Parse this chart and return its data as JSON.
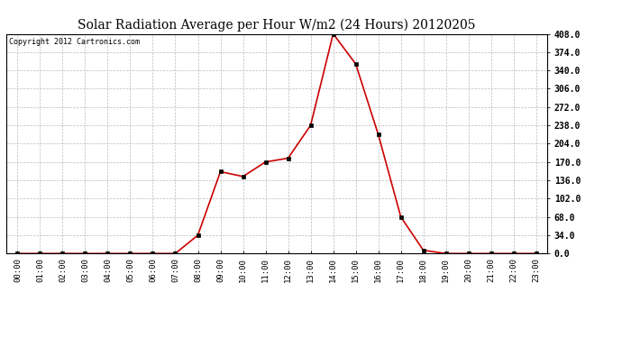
{
  "title": "Solar Radiation Average per Hour W/m2 (24 Hours) 20120205",
  "copyright_text": "Copyright 2012 Cartronics.com",
  "hours": [
    "00:00",
    "01:00",
    "02:00",
    "03:00",
    "04:00",
    "05:00",
    "06:00",
    "07:00",
    "08:00",
    "09:00",
    "10:00",
    "11:00",
    "12:00",
    "13:00",
    "14:00",
    "15:00",
    "16:00",
    "17:00",
    "18:00",
    "19:00",
    "20:00",
    "21:00",
    "22:00",
    "23:00"
  ],
  "values": [
    0,
    0,
    0,
    0,
    0,
    0,
    0,
    0,
    34,
    152,
    143,
    170,
    177,
    238,
    408,
    352,
    221,
    68,
    6,
    0,
    0,
    0,
    0,
    0
  ],
  "line_color": "#cc0000",
  "marker_color": "#000000",
  "bg_color": "#ffffff",
  "grid_color": "#bbbbbb",
  "y_ticks": [
    0.0,
    34.0,
    68.0,
    102.0,
    136.0,
    170.0,
    204.0,
    238.0,
    272.0,
    306.0,
    340.0,
    374.0,
    408.0
  ],
  "ylim": [
    0,
    408
  ],
  "title_fontsize": 10,
  "copyright_fontsize": 6,
  "tick_fontsize": 6.5,
  "ytick_fontsize": 7
}
